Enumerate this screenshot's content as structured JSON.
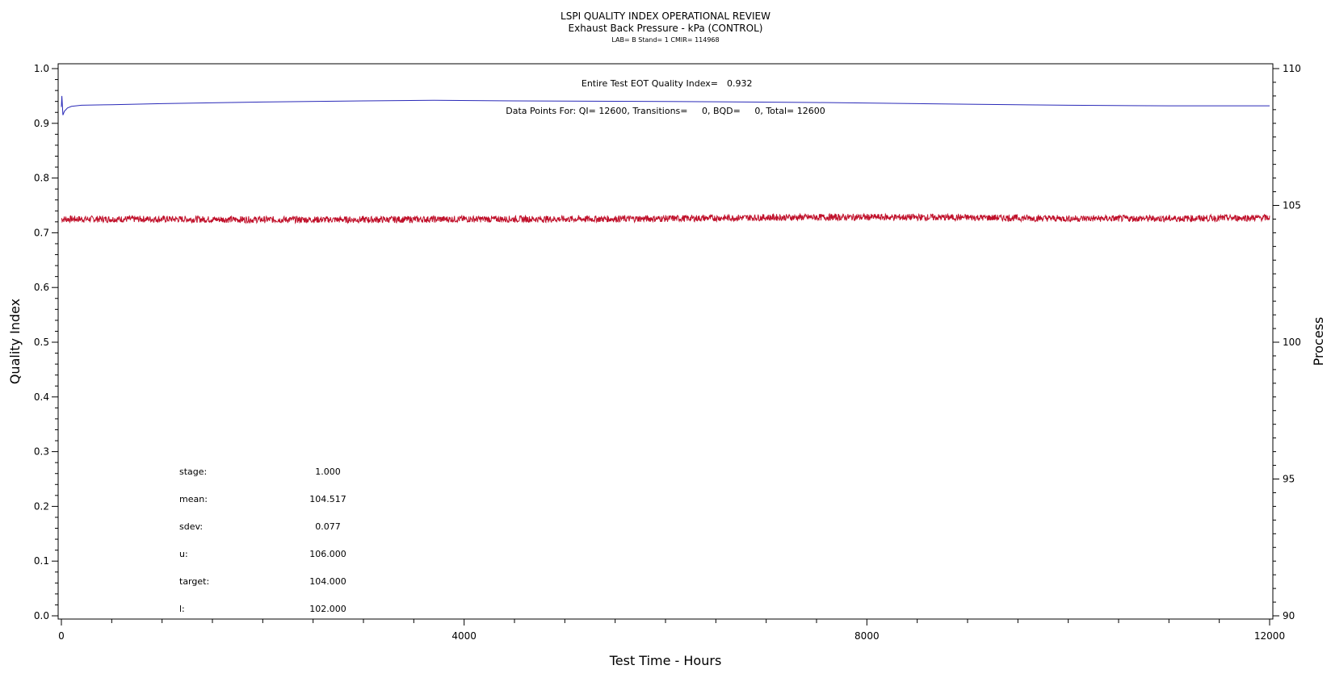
{
  "chart_data": {
    "type": "line",
    "title": "LSPI QUALITY INDEX OPERATIONAL REVIEW",
    "subtitle": "Exhaust Back Pressure - kPa (CONTROL)",
    "subsubtitle": "LAB= B Stand= 1 CMIR= 114968",
    "xlabel": "Test Time - Hours",
    "ylabel_left": "Quality Index",
    "ylabel_right": "Process",
    "xlim": [
      0,
      12000
    ],
    "ylim_left": [
      0,
      1
    ],
    "ylim_right": [
      90,
      110
    ],
    "x_ticks": [
      "0",
      "4000",
      "8000",
      "12000"
    ],
    "y_left_ticks": [
      "0.0",
      "0.1",
      "0.2",
      "0.3",
      "0.4",
      "0.5",
      "0.6",
      "0.7",
      "0.8",
      "0.9",
      "1.0"
    ],
    "y_right_ticks": [
      "90",
      "95",
      "100",
      "105",
      "110"
    ],
    "grid": false,
    "annotations": {
      "qi_label": "Entire Test EOT Quality Index=",
      "qi_value": "0.932",
      "points": "Data Points For: QI= 12600, Transitions=     0, BQD=     0, Total= 12600"
    },
    "stats": [
      {
        "label": "stage:",
        "value": "1.000"
      },
      {
        "label": "mean:",
        "value": "104.517"
      },
      {
        "label": "sdev:",
        "value": "0.077"
      },
      {
        "label": "u:",
        "value": "106.000"
      },
      {
        "label": "target:",
        "value": "104.000"
      },
      {
        "label": "l:",
        "value": "102.000"
      }
    ],
    "series": [
      {
        "name": "Quality Index",
        "axis": "left",
        "color": "#2a2ab8",
        "x": [
          0,
          5,
          15,
          30,
          60,
          100,
          200,
          500,
          1000,
          2000,
          3000,
          3700,
          4500,
          6000,
          7500,
          8500,
          9000,
          10000,
          11000,
          12000
        ],
        "y": [
          0.93,
          0.95,
          0.915,
          0.922,
          0.928,
          0.931,
          0.933,
          0.934,
          0.936,
          0.939,
          0.941,
          0.942,
          0.941,
          0.94,
          0.938,
          0.936,
          0.935,
          0.933,
          0.932,
          0.932
        ]
      },
      {
        "name": "Process",
        "axis": "right",
        "color": "#c0102a",
        "x": [
          0,
          1000,
          2000,
          3000,
          4000,
          5000,
          6000,
          7000,
          8000,
          9000,
          10000,
          11000,
          12000
        ],
        "y": [
          104.5,
          104.5,
          104.48,
          104.48,
          104.5,
          104.5,
          104.52,
          104.56,
          104.57,
          104.56,
          104.52,
          104.52,
          104.55
        ],
        "sdev": 0.077
      }
    ]
  }
}
